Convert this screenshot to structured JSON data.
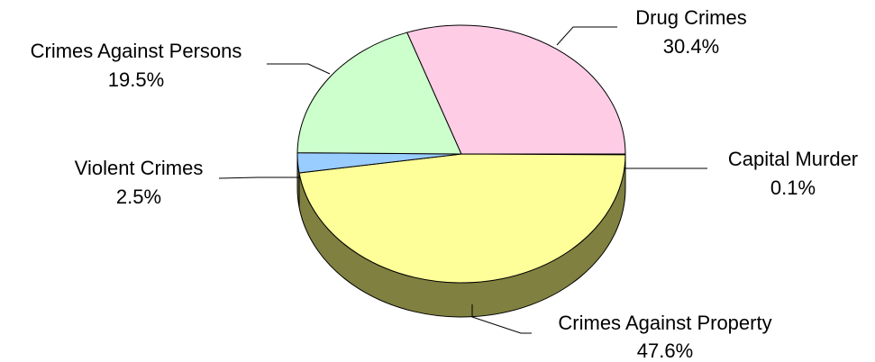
{
  "chart_data": {
    "type": "pie",
    "style": "3d",
    "title": "",
    "slices": [
      {
        "label": "Capital Murder",
        "value": 0.1,
        "value_label": "0.1%",
        "color": "#ffffff"
      },
      {
        "label": "Crimes Against Property",
        "value": 47.6,
        "value_label": "47.6%",
        "color": "#ffff99"
      },
      {
        "label": "Violent Crimes",
        "value": 2.5,
        "value_label": "2.5%",
        "color": "#99ccff"
      },
      {
        "label": "Crimes Against Persons",
        "value": 19.5,
        "value_label": "19.5%",
        "color": "#ccffcc"
      },
      {
        "label": "Drug Crimes",
        "value": 30.4,
        "value_label": "30.4%",
        "color": "#ffcce6"
      }
    ],
    "side_color": "#808040",
    "legend": "none"
  }
}
